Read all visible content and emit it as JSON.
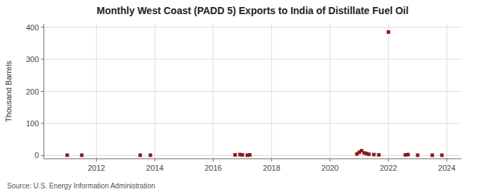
{
  "chart_data": {
    "type": "scatter",
    "title": "Monthly West Coast (PADD 5) Exports to India of Distillate Fuel Oil",
    "ylabel": "Thousand Barrels",
    "source": "Source: U.S. Energy Information Administration",
    "x": [
      2011.0,
      2011.5,
      2013.5,
      2013.85,
      2016.75,
      2016.92,
      2017.0,
      2017.17,
      2017.25,
      2020.92,
      2021.0,
      2021.08,
      2021.17,
      2021.25,
      2021.33,
      2021.5,
      2021.67,
      2022.0,
      2022.58,
      2022.67,
      2023.0,
      2023.5,
      2023.83
    ],
    "values": [
      1,
      1,
      1,
      1,
      2,
      3,
      2,
      1,
      2,
      5,
      10,
      15,
      8,
      6,
      4,
      3,
      2,
      385,
      2,
      3,
      1,
      1,
      1
    ],
    "color": "#8b1a1a",
    "marker": "square",
    "xlim": [
      2010.2,
      2024.5
    ],
    "xticks": [
      2012,
      2014,
      2016,
      2018,
      2020,
      2022,
      2024
    ],
    "ylim": [
      -10,
      410
    ],
    "yticks": [
      0,
      100,
      200,
      300,
      400
    ],
    "grid": true
  }
}
